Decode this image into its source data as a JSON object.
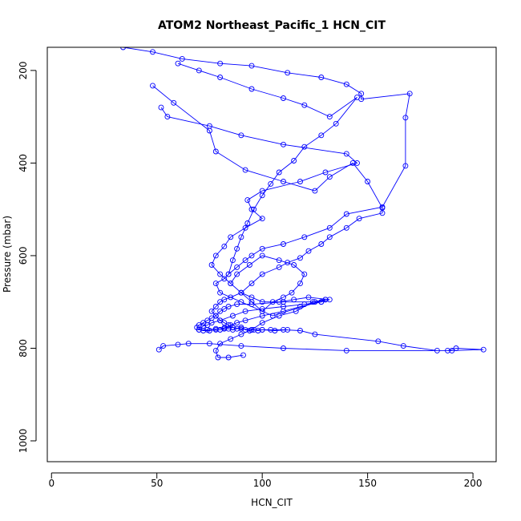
{
  "chart_data": {
    "type": "scatter",
    "title": "ATOM2 Northeast_Pacific_1 HCN_CIT",
    "xlabel": "HCN_CIT",
    "ylabel": "Pressure (mbar)",
    "xlim": [
      -2,
      211
    ],
    "ylim": [
      1045,
      150
    ],
    "y_reversed": true,
    "x_ticks": [
      0,
      50,
      100,
      150,
      200
    ],
    "y_ticks": [
      200,
      400,
      600,
      800,
      1000
    ],
    "grid": false,
    "legend": "none",
    "color": "#0000ff",
    "marker": "open-circle",
    "connected": true,
    "series": [
      {
        "x": [
          34,
          48,
          62,
          80,
          95,
          112,
          128,
          140,
          147,
          147,
          170,
          168,
          168,
          157,
          140,
          132,
          120,
          110,
          100,
          95,
          92,
          88,
          84,
          82,
          78,
          80,
          90,
          105,
          130,
          125,
          110,
          95,
          88,
          84,
          82,
          80,
          78,
          76,
          74,
          72,
          70,
          69,
          70,
          72,
          75,
          78,
          80,
          82,
          84,
          86,
          88,
          90,
          92,
          94,
          96,
          98,
          100,
          104,
          110,
          118,
          125,
          155,
          167,
          183,
          188,
          192,
          205,
          190,
          140,
          110,
          90,
          75,
          65,
          60,
          53,
          51
        ],
        "y": [
          150,
          160,
          175,
          185,
          190,
          205,
          215,
          230,
          250,
          262,
          250,
          302,
          406,
          495,
          510,
          540,
          560,
          575,
          585,
          600,
          610,
          625,
          640,
          650,
          660,
          680,
          700,
          730,
          695,
          700,
          700,
          705,
          705,
          710,
          715,
          720,
          730,
          735,
          740,
          745,
          750,
          755,
          760,
          762,
          762,
          760,
          760,
          758,
          758,
          760,
          758,
          755,
          760,
          762,
          760,
          762,
          760,
          760,
          760,
          762,
          770,
          785,
          795,
          805,
          805,
          800,
          803,
          805,
          805,
          800,
          795,
          790,
          790,
          792,
          795,
          803
        ]
      },
      {
        "x": [
          52,
          55,
          75,
          90,
          110,
          140,
          145,
          130,
          118,
          100,
          93,
          95,
          100,
          92,
          85,
          82,
          78,
          76,
          80,
          85,
          90,
          95,
          100,
          105,
          110,
          114,
          118,
          120,
          115,
          108,
          100,
          94,
          88,
          85,
          90,
          95,
          100,
          108,
          115,
          122,
          132,
          128,
          120,
          110,
          100,
          92,
          86,
          80,
          76,
          74,
          72,
          70,
          74,
          78,
          82,
          86,
          90,
          95,
          100,
          106,
          112
        ],
        "y": [
          280,
          300,
          320,
          340,
          360,
          380,
          400,
          420,
          440,
          460,
          480,
          500,
          520,
          540,
          560,
          580,
          600,
          620,
          640,
          660,
          680,
          700,
          720,
          700,
          690,
          680,
          660,
          640,
          620,
          610,
          600,
          620,
          640,
          660,
          680,
          690,
          700,
          700,
          695,
          690,
          695,
          700,
          705,
          710,
          715,
          720,
          730,
          740,
          745,
          750,
          752,
          760,
          760,
          758,
          756,
          755,
          758,
          760,
          760,
          762,
          760
        ]
      },
      {
        "x": [
          48,
          58,
          75,
          78,
          92,
          110,
          125,
          132,
          143,
          150,
          157,
          157,
          146,
          140,
          132,
          128,
          122,
          118,
          112,
          108,
          100,
          95,
          90,
          85,
          82,
          80,
          78,
          76,
          78,
          80,
          82,
          84,
          86
        ],
        "y": [
          233,
          270,
          330,
          375,
          415,
          440,
          460,
          430,
          400,
          440,
          497,
          508,
          520,
          540,
          560,
          575,
          590,
          605,
          615,
          625,
          640,
          660,
          680,
          690,
          695,
          700,
          710,
          720,
          730,
          740,
          745,
          750,
          755
        ]
      },
      {
        "x": [
          91,
          84,
          79,
          78,
          80,
          85,
          90,
          95,
          100,
          108,
          116,
          124,
          130,
          128,
          118,
          110,
          100,
          92,
          88,
          85,
          80
        ],
        "y": [
          815,
          820,
          820,
          805,
          790,
          780,
          770,
          760,
          745,
          730,
          720,
          700,
          695,
          700,
          710,
          720,
          730,
          740,
          745,
          750,
          760
        ]
      },
      {
        "x": [
          60,
          70,
          80,
          95,
          110,
          120,
          132,
          145,
          135,
          128,
          120,
          115,
          108,
          104,
          100,
          96,
          93,
          90,
          88,
          86,
          84
        ],
        "y": [
          185,
          200,
          215,
          240,
          260,
          275,
          300,
          258,
          315,
          340,
          365,
          395,
          420,
          445,
          470,
          500,
          530,
          560,
          585,
          610,
          640
        ]
      }
    ]
  }
}
